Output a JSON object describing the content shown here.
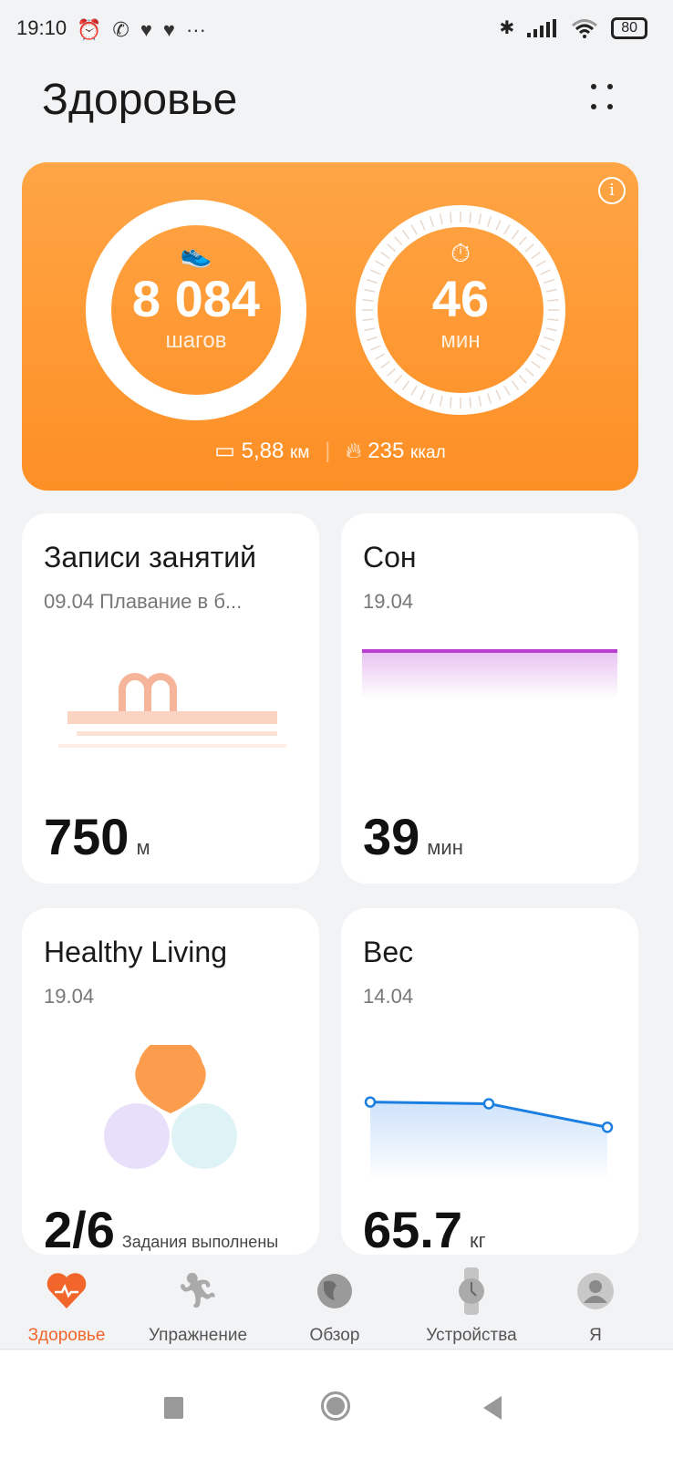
{
  "status_bar": {
    "time": "19:10",
    "battery": "80",
    "icons": [
      "alarm-icon",
      "whatsapp-icon",
      "heart-rate-icon",
      "heart-rate-icon",
      "more-dots-icon",
      "bluetooth-icon",
      "signal-icon",
      "wifi-icon",
      "battery-icon"
    ]
  },
  "header": {
    "title": "Здоровье"
  },
  "activity": {
    "steps": "8 084",
    "steps_unit": "шагов",
    "steps_progress": 0.81,
    "minutes": "46",
    "minutes_unit": "мин",
    "minutes_progress": 0.58,
    "distance": "5,88",
    "distance_unit": "км",
    "calories": "235",
    "calories_unit": "ккал",
    "accent": "#fd9a34"
  },
  "cards": {
    "workouts": {
      "title": "Записи занятий",
      "subtitle": "09.04 Плавание в б...",
      "value": "750",
      "unit": "м"
    },
    "sleep": {
      "title": "Сон",
      "subtitle": "19.04",
      "value": "39",
      "unit": "мин",
      "color": "#b93fd0"
    },
    "healthy": {
      "title": "Healthy Living",
      "subtitle": "19.04",
      "value": "2/6",
      "unit": "Задания выполнены"
    },
    "weight": {
      "title": "Вес",
      "subtitle": "14.04",
      "value": "65.7",
      "unit": "кг",
      "trend": [
        66.0,
        65.98,
        65.7
      ],
      "color": "#1a7fe0"
    }
  },
  "nav": {
    "items": [
      {
        "label": "Здоровье",
        "active": true
      },
      {
        "label": "Упражнение"
      },
      {
        "label": "Обзор"
      },
      {
        "label": "Устройства"
      },
      {
        "label": "Я"
      }
    ],
    "active_color": "#f2662c"
  }
}
